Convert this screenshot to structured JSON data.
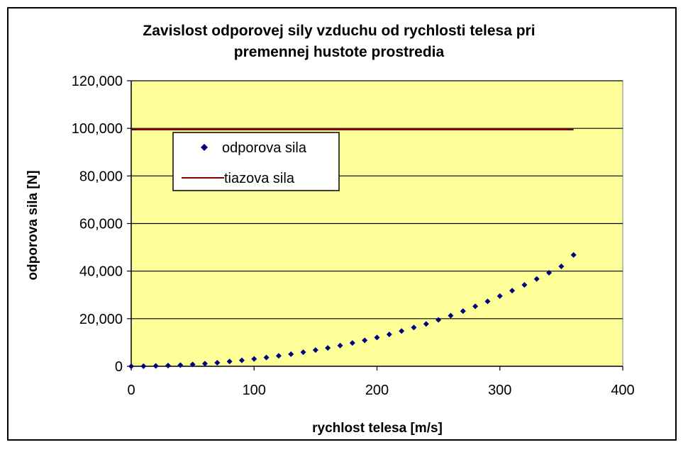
{
  "chart_data": {
    "type": "scatter",
    "title_line1": "Zavislost odporovej sily vzduchu od rychlosti telesa pri",
    "title_line2": "premennej hustote prostredia",
    "xlabel": "rychlost telesa [m/s]",
    "ylabel": "odporova sila [N]",
    "xlim": [
      0,
      400
    ],
    "ylim": [
      0,
      120000
    ],
    "x_ticks": [
      "0",
      "100",
      "200",
      "300",
      "400"
    ],
    "y_ticks": [
      "0",
      "20,000",
      "40,000",
      "60,000",
      "80,000",
      "100,000",
      "120,000"
    ],
    "grid": "horizontal",
    "legend_position": "top-left",
    "colors": {
      "plot_background": "#ffff99",
      "points": "#000080",
      "line": "#800000",
      "gridline": "#000000"
    },
    "series": [
      {
        "name": "odporova sila",
        "marker": "diamond",
        "x": [
          0,
          10,
          20,
          30,
          40,
          50,
          60,
          70,
          80,
          90,
          100,
          110,
          120,
          130,
          140,
          150,
          160,
          170,
          180,
          190,
          200,
          210,
          220,
          230,
          240,
          250,
          260,
          270,
          280,
          290,
          300,
          310,
          320,
          330,
          340,
          350,
          360
        ],
        "y": [
          0,
          50,
          150,
          300,
          500,
          800,
          1100,
          1500,
          2000,
          2500,
          3100,
          3700,
          4400,
          5100,
          5900,
          6800,
          7700,
          8700,
          9800,
          10900,
          12100,
          13400,
          14800,
          16300,
          17800,
          19500,
          21300,
          23200,
          25200,
          27300,
          29500,
          31800,
          34200,
          36700,
          39300,
          42000,
          46800
        ]
      },
      {
        "name": "tiazova sila",
        "marker": "line",
        "x": [
          0,
          360
        ],
        "y": [
          99500,
          99500
        ]
      }
    ]
  }
}
